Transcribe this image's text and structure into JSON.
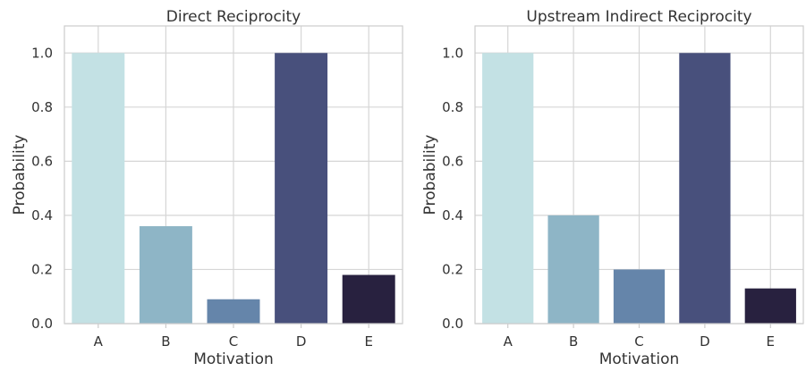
{
  "chart_data": [
    {
      "type": "bar",
      "title": "Direct Reciprocity",
      "xlabel": "Motivation",
      "ylabel": "Probability",
      "categories": [
        "A",
        "B",
        "C",
        "D",
        "E"
      ],
      "values": [
        1.0,
        0.36,
        0.09,
        1.0,
        0.18
      ],
      "colors": [
        "#c3e1e4",
        "#8eb5c6",
        "#6585aa",
        "#48507c",
        "#28213f"
      ],
      "ylim": [
        0,
        1.1
      ],
      "yticks": [
        0.0,
        0.2,
        0.4,
        0.6,
        0.8,
        1.0
      ],
      "ytick_labels": [
        "0.0",
        "0.2",
        "0.4",
        "0.6",
        "0.8",
        "1.0"
      ],
      "grid": true
    },
    {
      "type": "bar",
      "title": "Upstream Indirect Reciprocity",
      "xlabel": "Motivation",
      "ylabel": "Probability",
      "categories": [
        "A",
        "B",
        "C",
        "D",
        "E"
      ],
      "values": [
        1.0,
        0.4,
        0.2,
        1.0,
        0.13
      ],
      "colors": [
        "#c3e1e4",
        "#8eb5c6",
        "#6585aa",
        "#48507c",
        "#28213f"
      ],
      "ylim": [
        0,
        1.1
      ],
      "yticks": [
        0.0,
        0.2,
        0.4,
        0.6,
        0.8,
        1.0
      ],
      "ytick_labels": [
        "0.0",
        "0.2",
        "0.4",
        "0.6",
        "0.8",
        "1.0"
      ],
      "grid": true
    }
  ]
}
